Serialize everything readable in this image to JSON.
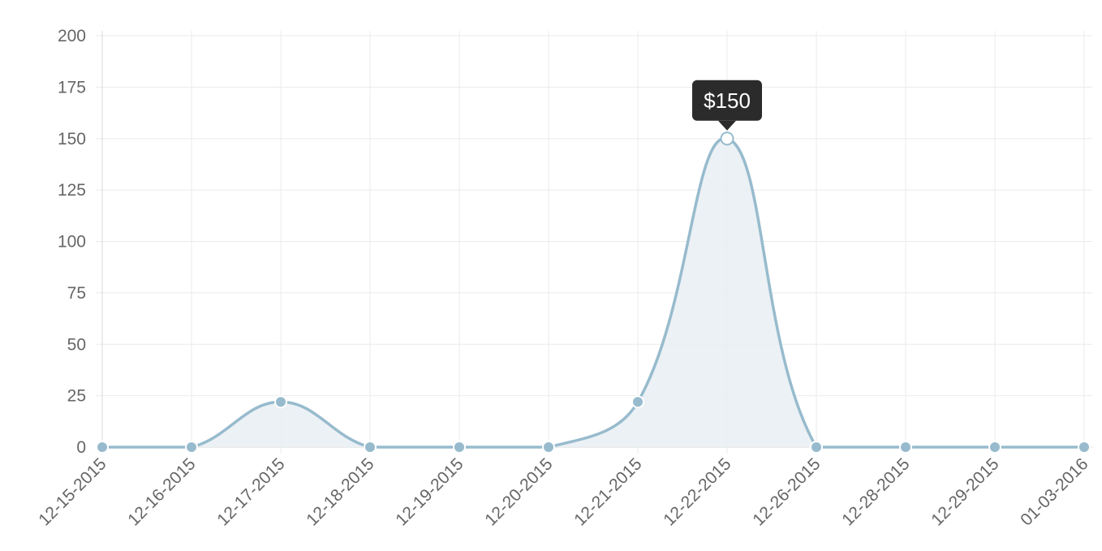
{
  "chart_data": {
    "type": "line",
    "title": "",
    "xlabel": "",
    "ylabel": "",
    "categories": [
      "12-15-2015",
      "12-16-2015",
      "12-17-2015",
      "12-18-2015",
      "12-19-2015",
      "12-20-2015",
      "12-21-2015",
      "12-22-2015",
      "12-26-2015",
      "12-28-2015",
      "12-29-2015",
      "01-03-2016"
    ],
    "values": [
      0,
      0,
      22,
      0,
      0,
      0,
      22,
      150,
      0,
      0,
      0,
      0
    ],
    "ylim": [
      0,
      200
    ],
    "yticks": [
      "0",
      "25",
      "50",
      "75",
      "100",
      "125",
      "150",
      "175",
      "200"
    ],
    "grid": true,
    "fill_area": true,
    "smooth": true,
    "colors": {
      "line": "#97bbcd",
      "fill": "#e8eff3",
      "point": "#97bbcd",
      "point_border": "#ffffff",
      "tooltip_bg": "#2b2b2b"
    },
    "tooltip": {
      "index": 7,
      "text": "$150"
    }
  }
}
